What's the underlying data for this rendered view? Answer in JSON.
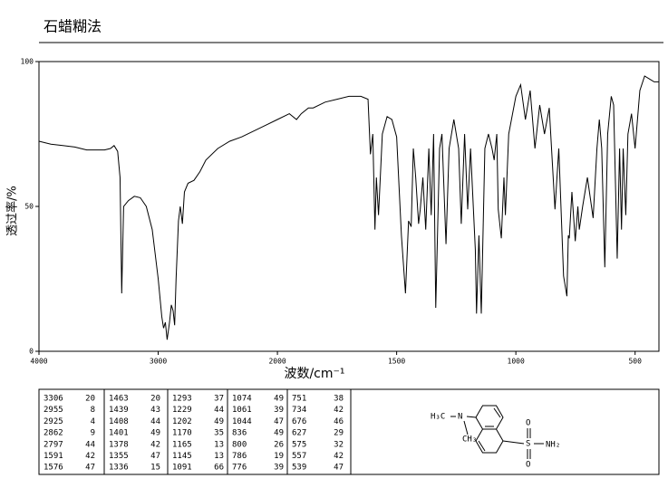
{
  "chart_data": {
    "type": "line",
    "title": "石蜡糊法",
    "xlabel": "波数/cm⁻¹",
    "ylabel": "透过率/%",
    "xlim": [
      4000,
      400
    ],
    "xscale_break": 2000,
    "xticks": [
      4000,
      3000,
      2000,
      1500,
      1000,
      500
    ],
    "ylim": [
      0,
      100
    ],
    "yticks": [
      0,
      50,
      100
    ],
    "color": "#000000",
    "x": [
      4000,
      3900,
      3800,
      3700,
      3650,
      3600,
      3450,
      3400,
      3370,
      3340,
      3320,
      3306,
      3290,
      3250,
      3200,
      3150,
      3100,
      3050,
      3000,
      2970,
      2955,
      2940,
      2925,
      2905,
      2890,
      2875,
      2862,
      2850,
      2830,
      2815,
      2797,
      2780,
      2750,
      2700,
      2650,
      2600,
      2500,
      2400,
      2300,
      2200,
      2100,
      2000,
      1950,
      1920,
      1900,
      1870,
      1850,
      1800,
      1750,
      1700,
      1650,
      1620,
      1610,
      1600,
      1591,
      1585,
      1576,
      1560,
      1540,
      1520,
      1500,
      1480,
      1463,
      1450,
      1439,
      1430,
      1420,
      1408,
      1401,
      1390,
      1378,
      1365,
      1355,
      1345,
      1336,
      1320,
      1310,
      1293,
      1280,
      1260,
      1240,
      1229,
      1215,
      1202,
      1190,
      1170,
      1165,
      1155,
      1145,
      1130,
      1115,
      1100,
      1091,
      1080,
      1074,
      1061,
      1050,
      1044,
      1030,
      1000,
      980,
      960,
      940,
      920,
      900,
      880,
      860,
      836,
      820,
      800,
      786,
      780,
      776,
      765,
      751,
      740,
      734,
      720,
      700,
      676,
      660,
      650,
      640,
      627,
      615,
      600,
      590,
      575,
      565,
      557,
      550,
      539,
      530,
      515,
      500,
      480,
      460,
      440,
      420,
      400
    ],
    "values": [
      72.5,
      71.5,
      71,
      70.5,
      70,
      69.5,
      69.5,
      70,
      71,
      69,
      60,
      20,
      50,
      52,
      53.5,
      53,
      50,
      42,
      25,
      12,
      8,
      10,
      4,
      10,
      16,
      14,
      9,
      25,
      45,
      50,
      44,
      55,
      58,
      59,
      62,
      66,
      70,
      72.5,
      74,
      76,
      78,
      80,
      82,
      80,
      82,
      84,
      84,
      86,
      87,
      88,
      88,
      87,
      68,
      75,
      42,
      60,
      47,
      75,
      81,
      80,
      74,
      40,
      20,
      45,
      43,
      70,
      60,
      44,
      49,
      60,
      42,
      70,
      47,
      75,
      15,
      70,
      75,
      37,
      70,
      80,
      70,
      44,
      75,
      49,
      70,
      35,
      13,
      40,
      13,
      70,
      75,
      70,
      66,
      75,
      49,
      39,
      60,
      47,
      75,
      88,
      92,
      80,
      90,
      70,
      85,
      75,
      84,
      49,
      70,
      26,
      19,
      40,
      39,
      55,
      38,
      50,
      42,
      50,
      60,
      46,
      70,
      80,
      70,
      29,
      75,
      88,
      85,
      32,
      70,
      42,
      70,
      47,
      75,
      82,
      70,
      90,
      95,
      94,
      93,
      93
    ],
    "peaks": [
      [
        3306,
        20
      ],
      [
        2955,
        8
      ],
      [
        2925,
        4
      ],
      [
        2862,
        9
      ],
      [
        2797,
        44
      ],
      [
        1591,
        42
      ],
      [
        1576,
        47
      ],
      [
        1463,
        20
      ],
      [
        1439,
        43
      ],
      [
        1408,
        44
      ],
      [
        1401,
        49
      ],
      [
        1378,
        42
      ],
      [
        1355,
        47
      ],
      [
        1336,
        15
      ],
      [
        1293,
        37
      ],
      [
        1229,
        44
      ],
      [
        1202,
        49
      ],
      [
        1170,
        35
      ],
      [
        1165,
        13
      ],
      [
        1145,
        13
      ],
      [
        1091,
        66
      ],
      [
        1074,
        49
      ],
      [
        1061,
        39
      ],
      [
        1044,
        47
      ],
      [
        836,
        49
      ],
      [
        800,
        26
      ],
      [
        786,
        19
      ],
      [
        776,
        39
      ],
      [
        751,
        38
      ],
      [
        734,
        42
      ],
      [
        676,
        46
      ],
      [
        627,
        29
      ],
      [
        575,
        32
      ],
      [
        557,
        42
      ],
      [
        539,
        47
      ]
    ],
    "structure_labels": [
      "H₃C",
      "N",
      "CH₃",
      "S",
      "O",
      "O",
      "NH₂"
    ]
  }
}
